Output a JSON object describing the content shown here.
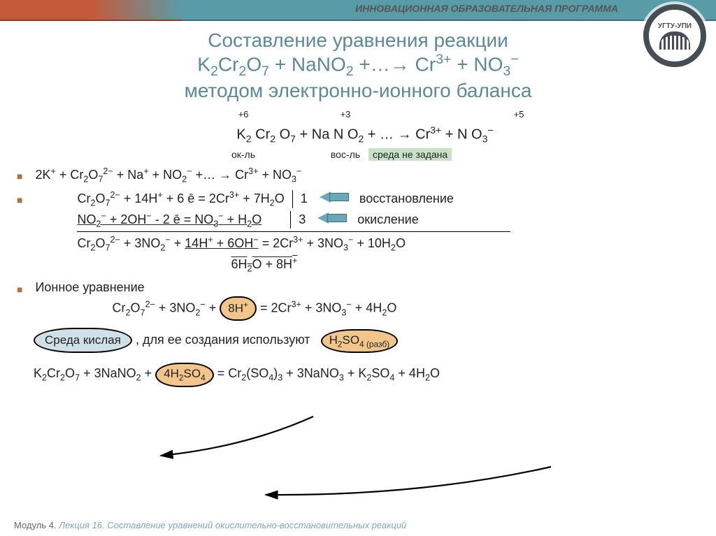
{
  "header": {
    "caption": "ИННОВАЦИОННАЯ ОБРАЗОВАТЕЛЬНАЯ ПРОГРАММА",
    "logo_top": "УГТУ-УПИ"
  },
  "title": {
    "line1": "Составление уравнения реакции",
    "line2_html": "K<sub>2</sub>Cr<sub>2</sub>O<sub>7</sub> + NaNO<sub>2</sub> +…→ Cr<sup>3+</sup> + NO<sub>3</sub><sup>−</sup>",
    "line3": "методом электронно-ионного баланса",
    "color": "#5a8a9a",
    "fontsize": 28
  },
  "ox_states": {
    "cr": "+6",
    "n_left": "+3",
    "n_right": "+5",
    "ok_l": "ок-ль",
    "vos_l": "вос-ль",
    "env": "среда не задана",
    "master_html": "K<sub>2</sub> Cr<sub>2</sub> O<sub>7</sub>  +  Na N O<sub>2</sub>  + … → Cr<sup>3+</sup> +  N O<sub>3</sub><sup>−</sup>"
  },
  "ionic_dissoc_html": "2K<sup>+</sup> + Cr<sub>2</sub>O<sub>7</sub><sup>2−</sup> + Na<sup>+</sup> + NO<sub>2</sub><sup>−</sup> +… → Cr<sup>3+</sup> + NO<sub>3</sub><sup>−</sup>",
  "half_reactions": {
    "reduction_html": "Cr<sub>2</sub>O<sub>7</sub><sup>2−</sup> + 14H<sup>+</sup> + 6 ē = 2Cr<sup>3+</sup> + 7H<sub>2</sub>O",
    "reduction_factor": "1",
    "reduction_label": "восстановление",
    "oxidation_html": "<span class=\"under\">NO<sub>2</sub><sup>−</sup> + 2OH<sup>−</sup> - 2 ē  = NO<sub>3</sub><sup>−</sup> + H<sub>2</sub>O</span>",
    "oxidation_factor": "3",
    "oxidation_label": "окисление",
    "sum_html": "Cr<sub>2</sub>O<sub>7</sub><sup>2−</sup> + 3NO<sub>2</sub><sup>−</sup> + <span class=\"under\">14H<sup>+</sup> + 6OH<sup>−</sup></span> = 2Cr<sup>3+</sup> + 3NO<sub>3</sub><sup>−</sup> + 10H<sub>2</sub>O",
    "reduce_html": "6H<sub>2</sub>O + 8H<sup>+</sup>"
  },
  "ionic_section": {
    "heading": "Ионное уравнение",
    "eq_html": "Cr<sub>2</sub>O<sub>7</sub><sup>2−</sup> + 3NO<sub>2</sub><sup>−</sup> + <span class=\"bubble-orange\">8H<sup>+</sup></span>  = 2Cr<sup>3+</sup> + 3NO<sub>3</sub><sup>−</sup> + 4H<sub>2</sub>O"
  },
  "env_note": {
    "bubble": "Среда кислая",
    "tail": ", для ее создания используют",
    "reagent_html": "H<sub>2</sub>SO<sub>4 (разб)</sub>"
  },
  "final_eq_html": "K<sub>2</sub>Cr<sub>2</sub>O<sub>7</sub> + 3NaNO<sub>2</sub> + <span class=\"bubble-orange\">4H<sub>2</sub>SO<sub>4</sub></span> = Cr<sub>2</sub>(SO<sub>4</sub>)<sub>3</sub> + 3NaNO<sub>3</sub> + K<sub>2</sub>SO<sub>4</sub> + 4H<sub>2</sub>O",
  "footer": {
    "module": "Модуль 4. ",
    "lecture": "Лекция 16. Составление уравнений окислительно-восстановительных реакций"
  },
  "colors": {
    "top_bar": "#5a9ba8",
    "accent": "#c45a3a",
    "title": "#5a8a9a",
    "bubble_blue": "#cfe0e6",
    "bubble_orange": "#f2c68a",
    "env_highlight": "#c8e2c8",
    "arrow": "#6aa8b8"
  }
}
